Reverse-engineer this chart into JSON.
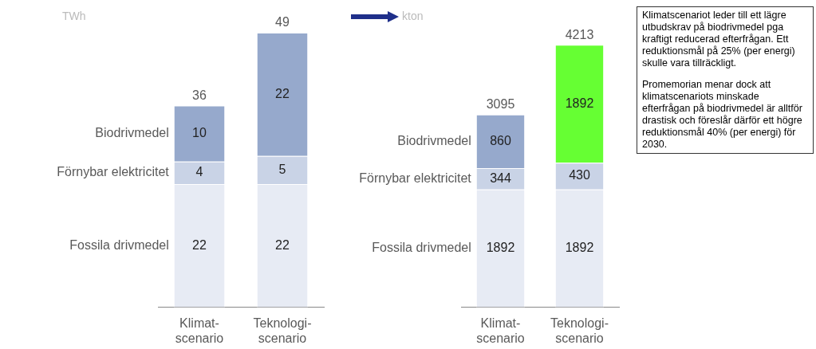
{
  "chart_data": [
    {
      "type": "bar",
      "stacked": true,
      "ylabel": "TWh",
      "categories": [
        "Klimat-\nscenario",
        "Teknologi-\nscenario"
      ],
      "series": [
        {
          "name": "Fossila drivmedel",
          "color": "#e7ebf4",
          "values": [
            22,
            22
          ]
        },
        {
          "name": "Förnybar elektricitet",
          "color": "#c9d3e6",
          "values": [
            4,
            5
          ]
        },
        {
          "name": "Biodrivmedel",
          "color": "#96a9cc",
          "values": [
            10,
            22
          ]
        }
      ],
      "data_labels": true,
      "totals": [
        "36",
        "49"
      ]
    },
    {
      "type": "bar",
      "stacked": true,
      "ylabel": "kton",
      "categories": [
        "Klimat-\nscenario",
        "Teknologi-\nscenario"
      ],
      "series": [
        {
          "name": "Fossila drivmedel",
          "color": "#e7ebf4",
          "values": [
            1892,
            1892
          ]
        },
        {
          "name": "Förnybar elektricitet",
          "color": "#c9d3e6",
          "values": [
            344,
            430
          ]
        },
        {
          "name": "Biodrivmedel",
          "colors": [
            "#96a9cc",
            "#66ff33"
          ],
          "values": [
            860,
            1892
          ]
        }
      ],
      "data_labels": true,
      "totals": [
        "3095",
        "4213"
      ],
      "annotations": [
        "Klimatscenariot leder till ett lägre utbudskrav på biodrivmedel pga kraftigt reducerad efterfrågan. Ett reduktionsmål på 25% (per energi) skulle vara tillräckligt.",
        "Promemorian menar dock att klimatscenariots minskade efterfrågan på biodrivmedel är alltför drastisk och föreslår därför ett högre reduktionsmål 40% (per energi) för 2030."
      ]
    }
  ]
}
